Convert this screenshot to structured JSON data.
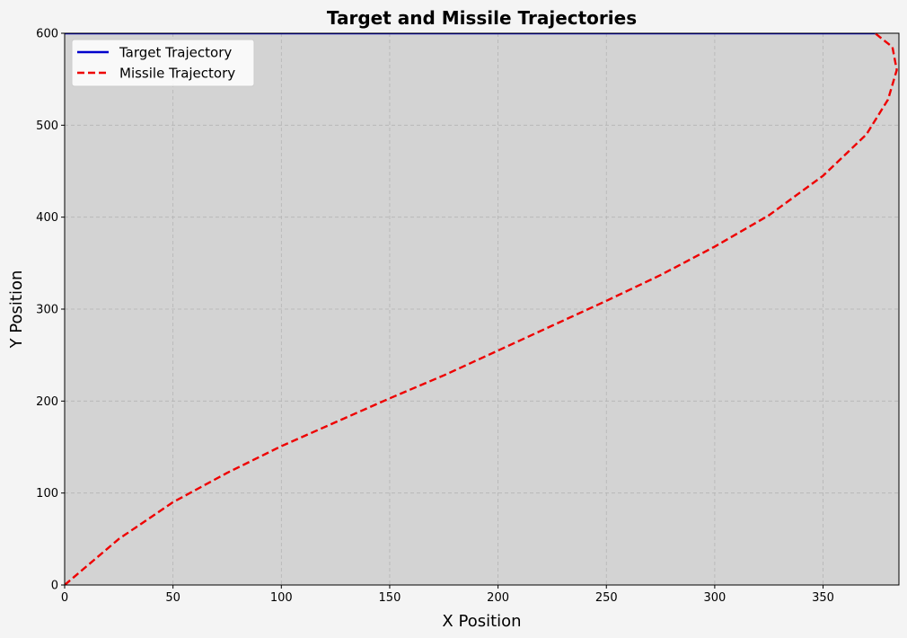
{
  "chart_data": {
    "type": "line",
    "title": "Target and Missile Trajectories",
    "xlabel": "X Position",
    "ylabel": "Y Position",
    "xlim": [
      0,
      385
    ],
    "ylim": [
      0,
      600
    ],
    "xticks": [
      0,
      50,
      100,
      150,
      200,
      250,
      300,
      350
    ],
    "yticks": [
      0,
      100,
      200,
      300,
      400,
      500,
      600
    ],
    "grid": true,
    "legend_position": "top-left",
    "background_color": "#d3d3d3",
    "series": [
      {
        "name": "Target Trajectory",
        "color": "#0000cc",
        "style": "solid",
        "x": [
          0,
          374
        ],
        "y": [
          600,
          600
        ]
      },
      {
        "name": "Missile Trajectory",
        "color": "#ee0000",
        "style": "dashed",
        "x": [
          0,
          10,
          25,
          50,
          75,
          100,
          125,
          150,
          175,
          200,
          225,
          250,
          275,
          300,
          325,
          350,
          370,
          380,
          384,
          382,
          374
        ],
        "y": [
          0,
          20,
          50,
          90,
          122,
          151,
          177,
          203,
          228,
          255,
          282,
          309,
          337,
          368,
          402,
          445,
          490,
          528,
          560,
          585,
          600
        ]
      }
    ]
  }
}
